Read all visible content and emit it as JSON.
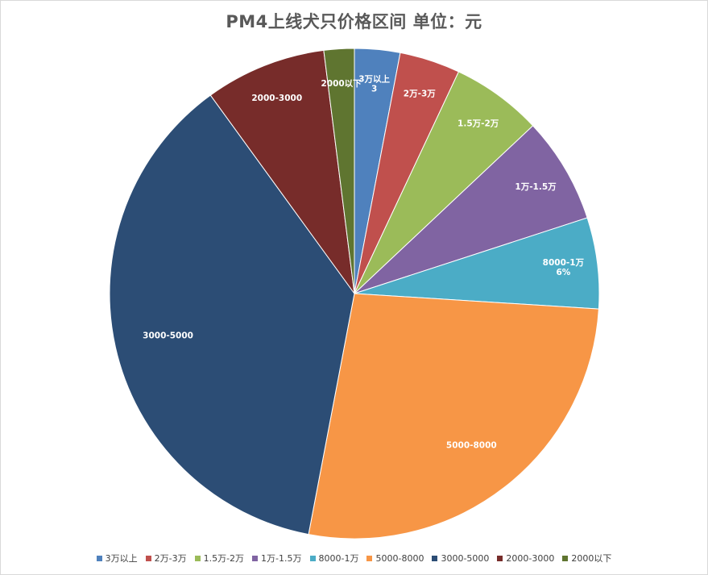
{
  "chart_data": {
    "type": "pie",
    "title": "PM4上线犬只价格区间 单位：元",
    "slices": [
      {
        "name": "3万以上",
        "value": 3,
        "color": "#4f81bd",
        "label_lines": [
          "3万以上",
          "3"
        ]
      },
      {
        "name": "2万-3万",
        "value": 4,
        "color": "#c0504d",
        "label_lines": [
          "2万-3万"
        ]
      },
      {
        "name": "1.5万-2万",
        "value": 6,
        "color": "#9bbb59",
        "label_lines": [
          "1.5万-2万"
        ]
      },
      {
        "name": "1万-1.5万",
        "value": 7,
        "color": "#8064a2",
        "label_lines": [
          "1万-1.5万"
        ]
      },
      {
        "name": "8000-1万",
        "value": 6,
        "color": "#4bacc6",
        "label_lines": [
          "8000-1万",
          "6%"
        ]
      },
      {
        "name": "5000-8000",
        "value": 27,
        "color": "#f79646",
        "label_lines": [
          "5000-8000"
        ]
      },
      {
        "name": "3000-5000",
        "value": 37,
        "color": "#2c4d75",
        "label_lines": [
          "3000-5000"
        ]
      },
      {
        "name": "2000-3000",
        "value": 8,
        "color": "#772c2a",
        "label_lines": [
          "2000-3000"
        ]
      },
      {
        "name": "2000以下",
        "value": 2,
        "color": "#5f7530",
        "label_lines": [
          "2000以下"
        ]
      }
    ],
    "legend_position": "bottom"
  }
}
